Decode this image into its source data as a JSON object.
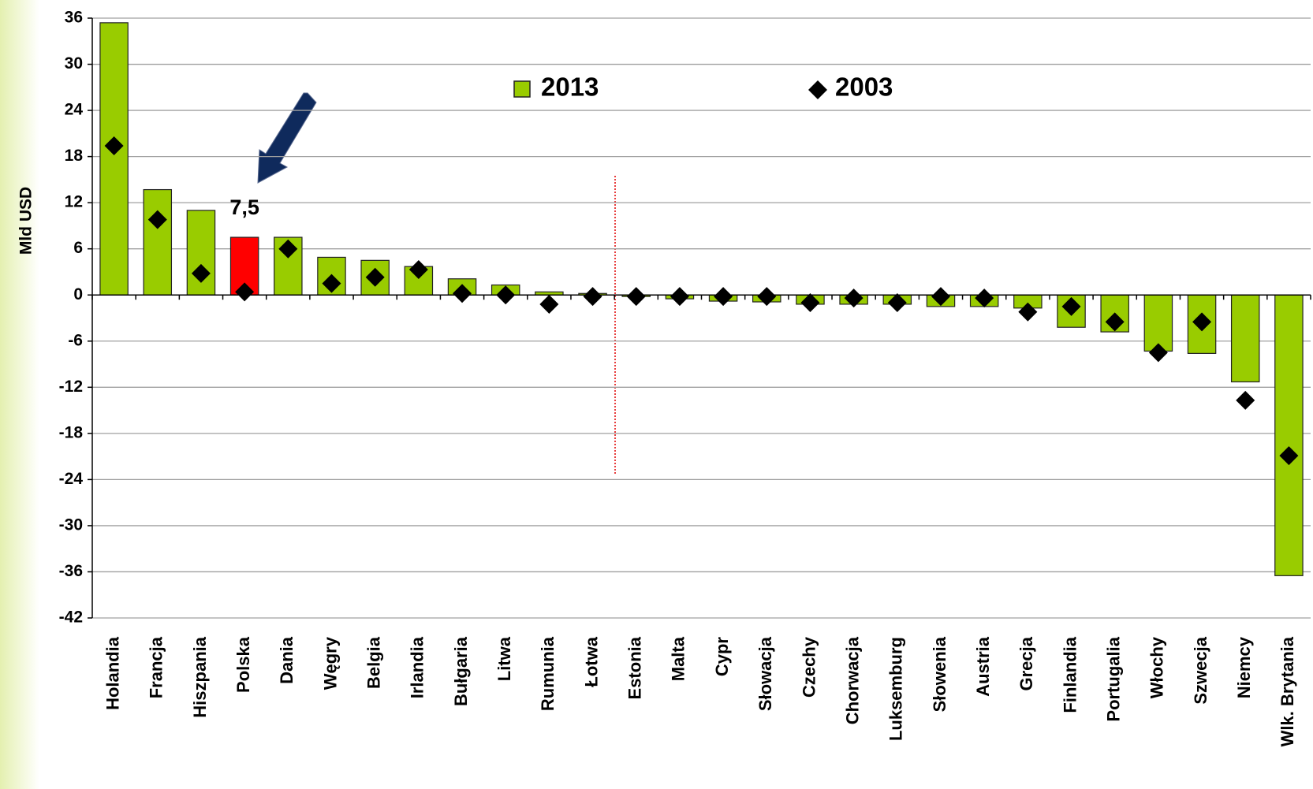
{
  "chart_data": {
    "type": "bar",
    "y_label": "Mld USD",
    "categories": [
      "Holandia",
      "Francja",
      "Hiszpania",
      "Polska",
      "Dania",
      "Węgry",
      "Belgia",
      "Irlandia",
      "Bułgaria",
      "Litwa",
      "Rumunia",
      "Łotwa",
      "Estonia",
      "Malta",
      "Cypr",
      "Słowacja",
      "Czechy",
      "Chorwacja",
      "Luksemburg",
      "Słowenia",
      "Austria",
      "Grecja",
      "Finlandia",
      "Portugalia",
      "Włochy",
      "Szwecja",
      "Niemcy",
      "Wlk. Brytania"
    ],
    "series": [
      {
        "name": "2013",
        "color": "#99cc00",
        "point_colors": [
          "#99cc00",
          "#99cc00",
          "#99cc00",
          "#ff0000",
          "#99cc00",
          "#99cc00",
          "#99cc00",
          "#99cc00",
          "#99cc00",
          "#99cc00",
          "#99cc00",
          "#99cc00",
          "#99cc00",
          "#99cc00",
          "#99cc00",
          "#99cc00",
          "#99cc00",
          "#99cc00",
          "#99cc00",
          "#99cc00",
          "#99cc00",
          "#99cc00",
          "#99cc00",
          "#99cc00",
          "#99cc00",
          "#99cc00",
          "#99cc00",
          "#99cc00"
        ],
        "values": [
          35.4,
          13.7,
          11.0,
          7.5,
          7.5,
          4.9,
          4.5,
          3.7,
          2.1,
          1.3,
          0.4,
          0.2,
          -0.2,
          -0.5,
          -0.8,
          -0.9,
          -1.2,
          -1.2,
          -1.2,
          -1.5,
          -1.5,
          -1.7,
          -4.2,
          -4.8,
          -7.3,
          -7.6,
          -11.3,
          -36.5
        ],
        "value_labels": [
          null,
          null,
          null,
          "7,5",
          null,
          null,
          null,
          null,
          null,
          null,
          null,
          null,
          null,
          null,
          null,
          null,
          null,
          null,
          null,
          null,
          null,
          null,
          null,
          null,
          null,
          null,
          null,
          null
        ]
      },
      {
        "name": "2003",
        "color": "#000000",
        "marker": "diamond",
        "values": [
          19.4,
          9.8,
          2.8,
          0.4,
          6.0,
          1.5,
          2.3,
          3.3,
          0.2,
          0,
          -1.2,
          -0.2,
          -0.2,
          -0.2,
          -0.2,
          -0.2,
          -1.0,
          -0.4,
          -1.0,
          -0.2,
          -0.4,
          -2.2,
          -1.5,
          -3.5,
          -7.5,
          -3.5,
          -13.7,
          -20.9
        ]
      }
    ],
    "ylim": [
      -42,
      36
    ],
    "yticks": [
      -42,
      -36,
      -30,
      -24,
      -18,
      -12,
      -6,
      0,
      6,
      12,
      18,
      24,
      30,
      36
    ],
    "grid": true
  }
}
